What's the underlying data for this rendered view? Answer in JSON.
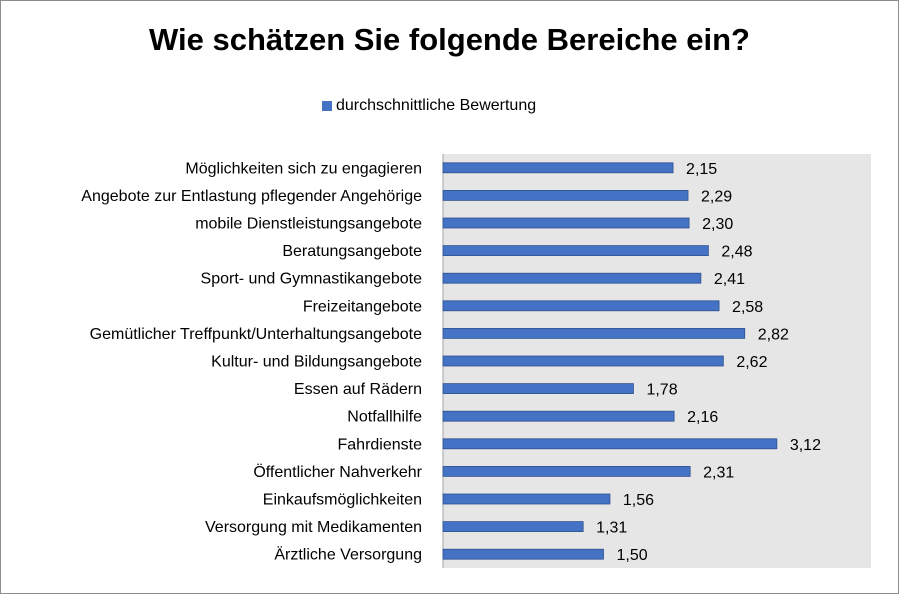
{
  "chart_data": {
    "type": "bar",
    "orientation": "horizontal",
    "title": "Wie schätzen Sie folgende Bereiche ein?",
    "categories": [
      "Möglichkeiten sich zu engagieren",
      "Angebote zur Entlastung pflegender Angehörige",
      "mobile Dienstleistungsangebote",
      "Beratungsangebote",
      "Sport- und Gymnastikangebote",
      "Freizeitangebote",
      "Gemütlicher Treffpunkt/Unterhaltungsangebote",
      "Kultur- und Bildungsangebote",
      "Essen auf Rädern",
      "Notfallhilfe",
      "Fahrdienste",
      "Öffentlicher Nahverkehr",
      "Einkaufsmöglichkeiten",
      "Versorgung mit Medikamenten",
      "Ärztliche Versorgung"
    ],
    "series": [
      {
        "name": "durchschnittliche Bewertung",
        "values": [
          2.15,
          2.29,
          2.3,
          2.48,
          2.41,
          2.58,
          2.82,
          2.62,
          1.78,
          2.16,
          3.12,
          2.31,
          1.56,
          1.31,
          1.5
        ],
        "color": "#4472C4"
      }
    ],
    "data_labels": [
      "2,15",
      "2,29",
      "2,30",
      "2,48",
      "2,41",
      "2,58",
      "2,82",
      "2,62",
      "1,78",
      "2,16",
      "3,12",
      "2,31",
      "1,56",
      "1,31",
      "1,50"
    ],
    "xlim": [
      0,
      4
    ],
    "grid": false,
    "legend": "top",
    "plot_background": "#E7E6E6"
  }
}
